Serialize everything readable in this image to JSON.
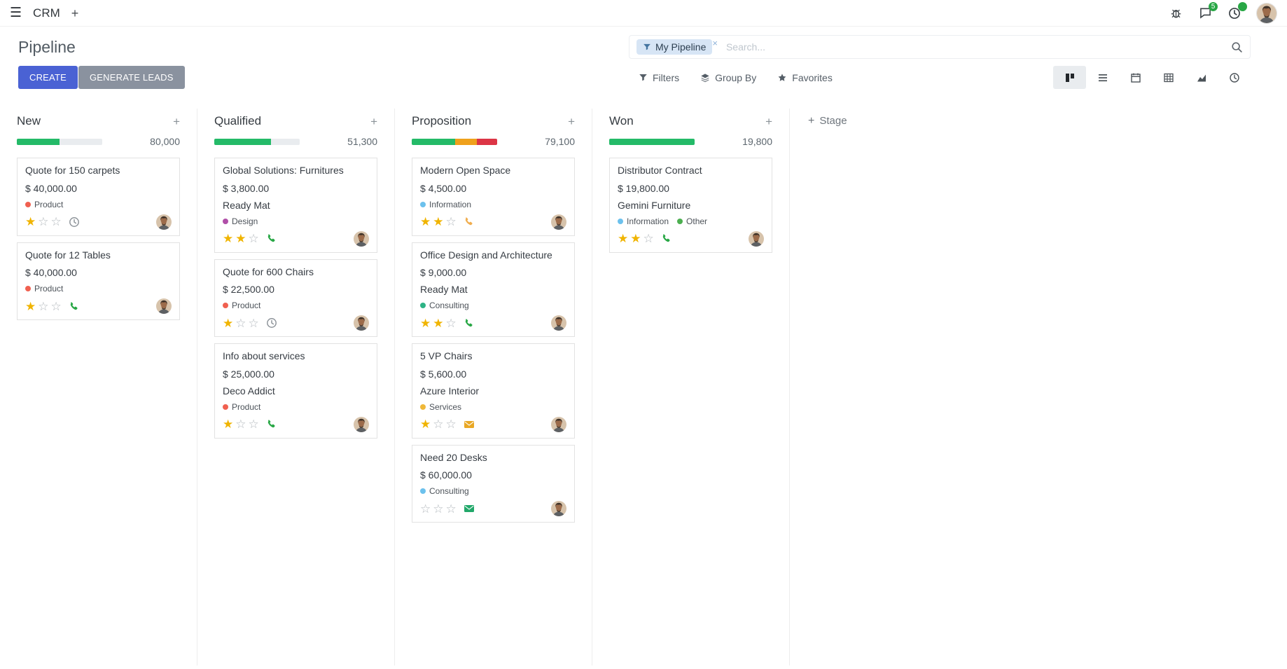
{
  "navbar": {
    "app_name": "CRM",
    "messages_badge": "5",
    "activities_badge": ""
  },
  "control_panel": {
    "title": "Pipeline",
    "create_label": "CREATE",
    "generate_leads_label": "GENERATE LEADS",
    "search_facet": "My Pipeline",
    "search_placeholder": "Search...",
    "filters_label": "Filters",
    "group_by_label": "Group By",
    "favorites_label": "Favorites"
  },
  "colors": {
    "primary": "#4a62d4",
    "secondary_button": "#8a929f",
    "progress_green": "#24ba68",
    "progress_yellow": "#efa11c",
    "progress_red": "#dc3545",
    "badge_green": "#28a745",
    "star_gold": "#f0b400"
  },
  "kanban": {
    "add_stage_label": "Stage",
    "columns": [
      {
        "name": "New",
        "counter": "80,000",
        "progress": [
          {
            "color": "#24ba68",
            "pct": 50
          }
        ],
        "cards": [
          {
            "title": "Quote for 150 carpets",
            "amount": "$ 40,000.00",
            "partner": "",
            "tags": [
              {
                "label": "Product",
                "color": "#f06050"
              }
            ],
            "stars": 1,
            "activity": {
              "icon": "clock",
              "color": "#8f959b"
            }
          },
          {
            "title": "Quote for 12 Tables",
            "amount": "$ 40,000.00",
            "partner": "",
            "tags": [
              {
                "label": "Product",
                "color": "#f06050"
              }
            ],
            "stars": 1,
            "activity": {
              "icon": "phone",
              "color": "#28a745"
            }
          }
        ]
      },
      {
        "name": "Qualified",
        "counter": "51,300",
        "progress": [
          {
            "color": "#24ba68",
            "pct": 66
          }
        ],
        "cards": [
          {
            "title": "Global Solutions: Furnitures",
            "amount": "$ 3,800.00",
            "partner": "Ready Mat",
            "tags": [
              {
                "label": "Design",
                "color": "#b04fa8"
              }
            ],
            "stars": 2,
            "activity": {
              "icon": "phone",
              "color": "#28a745"
            }
          },
          {
            "title": "Quote for 600 Chairs",
            "amount": "$ 22,500.00",
            "partner": "",
            "tags": [
              {
                "label": "Product",
                "color": "#f06050"
              }
            ],
            "stars": 1,
            "activity": {
              "icon": "clock",
              "color": "#8f959b"
            }
          },
          {
            "title": "Info about services",
            "amount": "$ 25,000.00",
            "partner": "Deco Addict",
            "tags": [
              {
                "label": "Product",
                "color": "#f06050"
              }
            ],
            "stars": 1,
            "activity": {
              "icon": "phone",
              "color": "#28a745"
            }
          }
        ]
      },
      {
        "name": "Proposition",
        "counter": "79,100",
        "progress": [
          {
            "color": "#24ba68",
            "pct": 51
          },
          {
            "color": "#efa11c",
            "pct": 25
          },
          {
            "color": "#dc3545",
            "pct": 24
          }
        ],
        "cards": [
          {
            "title": "Modern Open Space",
            "amount": "$ 4,500.00",
            "partner": "",
            "tags": [
              {
                "label": "Information",
                "color": "#6cc1ed"
              }
            ],
            "stars": 2,
            "activity": {
              "icon": "phone",
              "color": "#f0ad4e"
            }
          },
          {
            "title": "Office Design and Architecture",
            "amount": "$ 9,000.00",
            "partner": "Ready Mat",
            "tags": [
              {
                "label": "Consulting",
                "color": "#2eb385"
              }
            ],
            "stars": 2,
            "activity": {
              "icon": "phone",
              "color": "#28a745"
            }
          },
          {
            "title": "5 VP Chairs",
            "amount": "$ 5,600.00",
            "partner": "Azure Interior",
            "tags": [
              {
                "label": "Services",
                "color": "#efb839"
              }
            ],
            "stars": 1,
            "activity": {
              "icon": "envelope",
              "color": "#e9a825"
            }
          },
          {
            "title": "Need 20 Desks",
            "amount": "$ 60,000.00",
            "partner": "",
            "tags": [
              {
                "label": "Consulting",
                "color": "#6cc1ed"
              }
            ],
            "stars": 0,
            "activity": {
              "icon": "envelope",
              "color": "#22a86a"
            }
          }
        ]
      },
      {
        "name": "Won",
        "counter": "19,800",
        "progress": [
          {
            "color": "#24ba68",
            "pct": 100
          }
        ],
        "cards": [
          {
            "title": "Distributor Contract",
            "amount": "$ 19,800.00",
            "partner": "Gemini Furniture",
            "tags": [
              {
                "label": "Information",
                "color": "#6cc1ed"
              },
              {
                "label": "Other",
                "color": "#4caf50"
              }
            ],
            "stars": 2,
            "activity": {
              "icon": "phone",
              "color": "#28a745"
            }
          }
        ]
      }
    ]
  }
}
